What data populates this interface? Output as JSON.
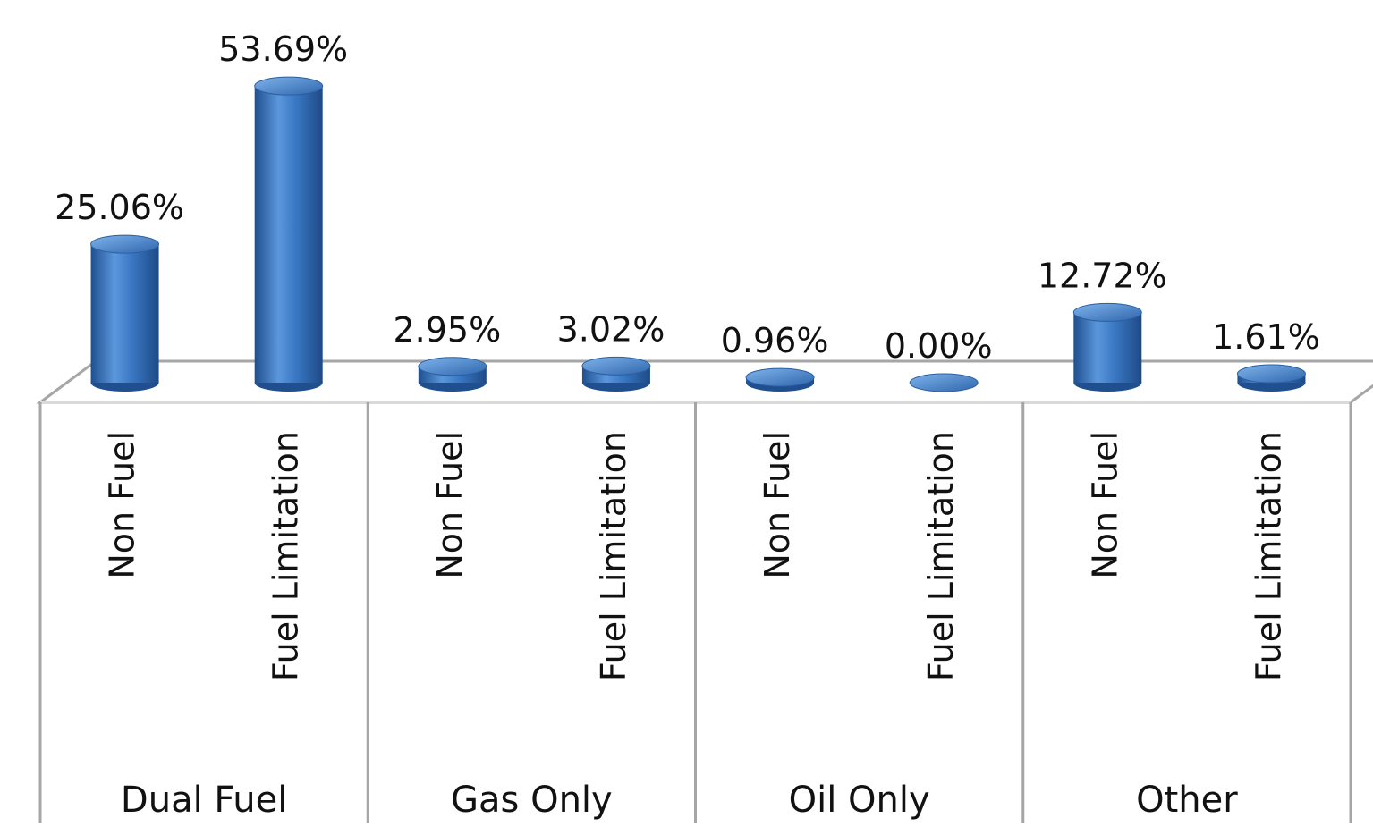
{
  "chart_data": {
    "type": "bar",
    "style": "3d-cylinder",
    "groups": [
      "Dual Fuel",
      "Gas Only",
      "Oil Only",
      "Other"
    ],
    "subcategories": [
      "Non Fuel",
      "Fuel Limitation"
    ],
    "categories": [
      {
        "group": "Dual Fuel",
        "label": "Non Fuel"
      },
      {
        "group": "Dual Fuel",
        "label": "Fuel Limitation"
      },
      {
        "group": "Gas Only",
        "label": "Non Fuel"
      },
      {
        "group": "Gas Only",
        "label": "Fuel Limitation"
      },
      {
        "group": "Oil Only",
        "label": "Non Fuel"
      },
      {
        "group": "Oil Only",
        "label": "Fuel Limitation"
      },
      {
        "group": "Other",
        "label": "Non Fuel"
      },
      {
        "group": "Other",
        "label": "Fuel Limitation"
      }
    ],
    "values": [
      25.06,
      53.69,
      2.95,
      3.02,
      0.96,
      0.0,
      12.72,
      1.61
    ],
    "value_labels": [
      "25.06%",
      "53.69%",
      "2.95%",
      "3.02%",
      "0.96%",
      "0.00%",
      "12.72%",
      "1.61%"
    ],
    "unit": "%",
    "title": "",
    "xlabel": "",
    "ylabel": "",
    "ylim": [
      0,
      60
    ],
    "grid": false,
    "legend": "none",
    "bar_color": "#3a78c4",
    "bar_highlight": "#6fa6e2",
    "bar_shadow": "#1f4f8f",
    "floor_color": "#d9d9d9",
    "axis_color": "#a6a6a6"
  }
}
